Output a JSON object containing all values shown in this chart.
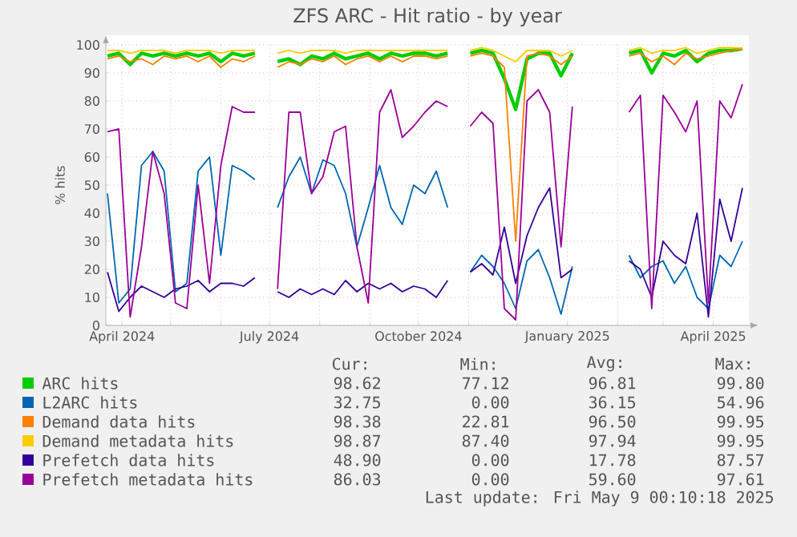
{
  "chart_data": {
    "type": "line",
    "title": "ZFS ARC - Hit ratio - by year",
    "ylabel": "% hits",
    "x": [
      "2024-03-23",
      "2024-03-30",
      "2024-04-06",
      "2024-04-13",
      "2024-04-20",
      "2024-04-27",
      "2024-05-04",
      "2024-05-11",
      "2024-05-18",
      "2024-05-25",
      "2024-06-01",
      "2024-06-08",
      "2024-06-15",
      "2024-06-22",
      "2024-06-29",
      "2024-07-06",
      "2024-07-13",
      "2024-07-20",
      "2024-07-27",
      "2024-08-03",
      "2024-08-10",
      "2024-08-17",
      "2024-08-24",
      "2024-08-31",
      "2024-09-07",
      "2024-09-14",
      "2024-09-21",
      "2024-09-28",
      "2024-10-05",
      "2024-10-12",
      "2024-10-19",
      "2024-10-26",
      "2024-11-02",
      "2024-11-09",
      "2024-11-16",
      "2024-11-23",
      "2024-11-30",
      "2024-12-07",
      "2024-12-14",
      "2024-12-21",
      "2024-12-28",
      "2025-01-04",
      "2025-01-11",
      "2025-01-18",
      "2025-01-25",
      "2025-02-01",
      "2025-02-08",
      "2025-02-15",
      "2025-02-22",
      "2025-03-01",
      "2025-03-08",
      "2025-03-15",
      "2025-03-22",
      "2025-03-29",
      "2025-04-05",
      "2025-04-12",
      "2025-04-19"
    ],
    "series": [
      {
        "name": "ARC hits",
        "color": "#00cc00",
        "values": [
          96,
          97,
          93,
          97,
          96,
          97,
          96,
          97,
          96,
          97,
          94,
          97,
          96,
          97,
          null,
          94,
          95,
          93,
          96,
          95,
          97,
          95,
          96,
          97,
          95,
          97,
          96,
          97,
          97,
          96,
          97,
          null,
          97,
          98,
          97,
          88,
          77,
          95,
          97,
          97,
          89,
          97,
          null,
          null,
          null,
          null,
          97,
          98,
          90,
          97,
          96,
          98,
          94,
          97,
          98,
          98,
          98.6
        ]
      },
      {
        "name": "L2ARC hits",
        "color": "#0066b3",
        "values": [
          47,
          8,
          13,
          57,
          62,
          55,
          12,
          15,
          55,
          60,
          25,
          57,
          55,
          52,
          null,
          42,
          53,
          60,
          47,
          59,
          57,
          47,
          28,
          42,
          57,
          42,
          36,
          50,
          47,
          55,
          42,
          null,
          19,
          25,
          21,
          15,
          6,
          23,
          27,
          17,
          4,
          21,
          null,
          null,
          null,
          null,
          25,
          17,
          21,
          23,
          15,
          21,
          10,
          6,
          25,
          21,
          30
        ]
      },
      {
        "name": "Demand data hits",
        "color": "#ff8000",
        "values": [
          95,
          96,
          94,
          95,
          93,
          96,
          95,
          96,
          94,
          96,
          92,
          95,
          94,
          96,
          null,
          92,
          94,
          93,
          95,
          94,
          96,
          93,
          95,
          96,
          94,
          96,
          94,
          96,
          96,
          95,
          96,
          null,
          96,
          97,
          96,
          92,
          30,
          96,
          97,
          96,
          93,
          96,
          null,
          null,
          null,
          null,
          96,
          97,
          94,
          96,
          93,
          97,
          95,
          96,
          97,
          98,
          98.4
        ]
      },
      {
        "name": "Demand metadata hits",
        "color": "#ffcc00",
        "values": [
          98,
          98,
          97,
          98,
          98,
          98,
          97,
          98,
          98,
          98,
          97,
          98,
          98,
          98,
          null,
          97,
          98,
          97,
          98,
          98,
          98,
          97,
          98,
          98,
          98,
          98,
          98,
          98,
          98,
          98,
          98,
          null,
          98,
          99,
          98,
          96,
          94,
          98,
          98,
          98,
          96,
          98,
          null,
          null,
          null,
          null,
          98,
          99,
          97,
          98,
          98,
          99,
          97,
          98,
          99,
          99,
          98.9
        ]
      },
      {
        "name": "Prefetch data hits",
        "color": "#330099",
        "values": [
          19,
          5,
          10,
          14,
          12,
          10,
          13,
          14,
          16,
          12,
          15,
          15,
          14,
          17,
          null,
          12,
          10,
          13,
          11,
          13,
          11,
          16,
          12,
          15,
          13,
          15,
          12,
          14,
          13,
          10,
          16,
          null,
          19,
          22,
          18,
          35,
          15,
          32,
          42,
          49,
          17,
          20,
          null,
          null,
          null,
          null,
          23,
          20,
          10,
          30,
          25,
          22,
          40,
          3,
          45,
          30,
          49
        ]
      },
      {
        "name": "Prefetch metadata hits",
        "color": "#990099",
        "values": [
          69,
          70,
          3,
          28,
          62,
          47,
          8,
          6,
          50,
          15,
          57,
          78,
          76,
          76,
          null,
          13,
          76,
          76,
          47,
          53,
          69,
          71,
          28,
          8,
          76,
          84,
          67,
          71,
          76,
          80,
          78,
          null,
          71,
          76,
          72,
          6,
          2,
          80,
          84,
          76,
          28,
          78,
          null,
          null,
          null,
          null,
          76,
          82,
          6,
          82,
          76,
          69,
          80,
          8,
          80,
          74,
          86
        ]
      }
    ],
    "xlim": [
      "2024-03-22",
      "2025-04-23"
    ],
    "xticks": [
      {
        "value": "2024-04-01",
        "label": "April 2024"
      },
      {
        "value": "2024-05-01",
        "label": null
      },
      {
        "value": "2024-06-01",
        "label": null
      },
      {
        "value": "2024-07-01",
        "label": "July 2024"
      },
      {
        "value": "2024-08-01",
        "label": null
      },
      {
        "value": "2024-09-01",
        "label": null
      },
      {
        "value": "2024-10-01",
        "label": "October 2024"
      },
      {
        "value": "2024-11-01",
        "label": null
      },
      {
        "value": "2024-12-01",
        "label": null
      },
      {
        "value": "2025-01-01",
        "label": "January 2025"
      },
      {
        "value": "2025-02-01",
        "label": null
      },
      {
        "value": "2025-03-01",
        "label": null
      },
      {
        "value": "2025-04-01",
        "label": "April 2025"
      }
    ],
    "ylim": [
      0,
      100
    ],
    "yticks": [
      0,
      10,
      20,
      30,
      40,
      50,
      60,
      70,
      80,
      90,
      100
    ],
    "grid": true,
    "legend": "bottom",
    "annotations": [
      "Cur:",
      "Min:",
      "Avg:",
      "Max:",
      "98.62",
      "77.12",
      "96.81",
      "99.80",
      "32.75",
      "0.00",
      "36.15",
      "54.96",
      "98.38",
      "22.81",
      "96.50",
      "99.95",
      "98.87",
      "87.40",
      "97.94",
      "99.95",
      "48.90",
      "0.00",
      "17.78",
      "87.57",
      "86.03",
      "0.00",
      "59.60",
      "97.61",
      "Last update: Fri May  9 00:10:18 2025"
    ]
  }
}
